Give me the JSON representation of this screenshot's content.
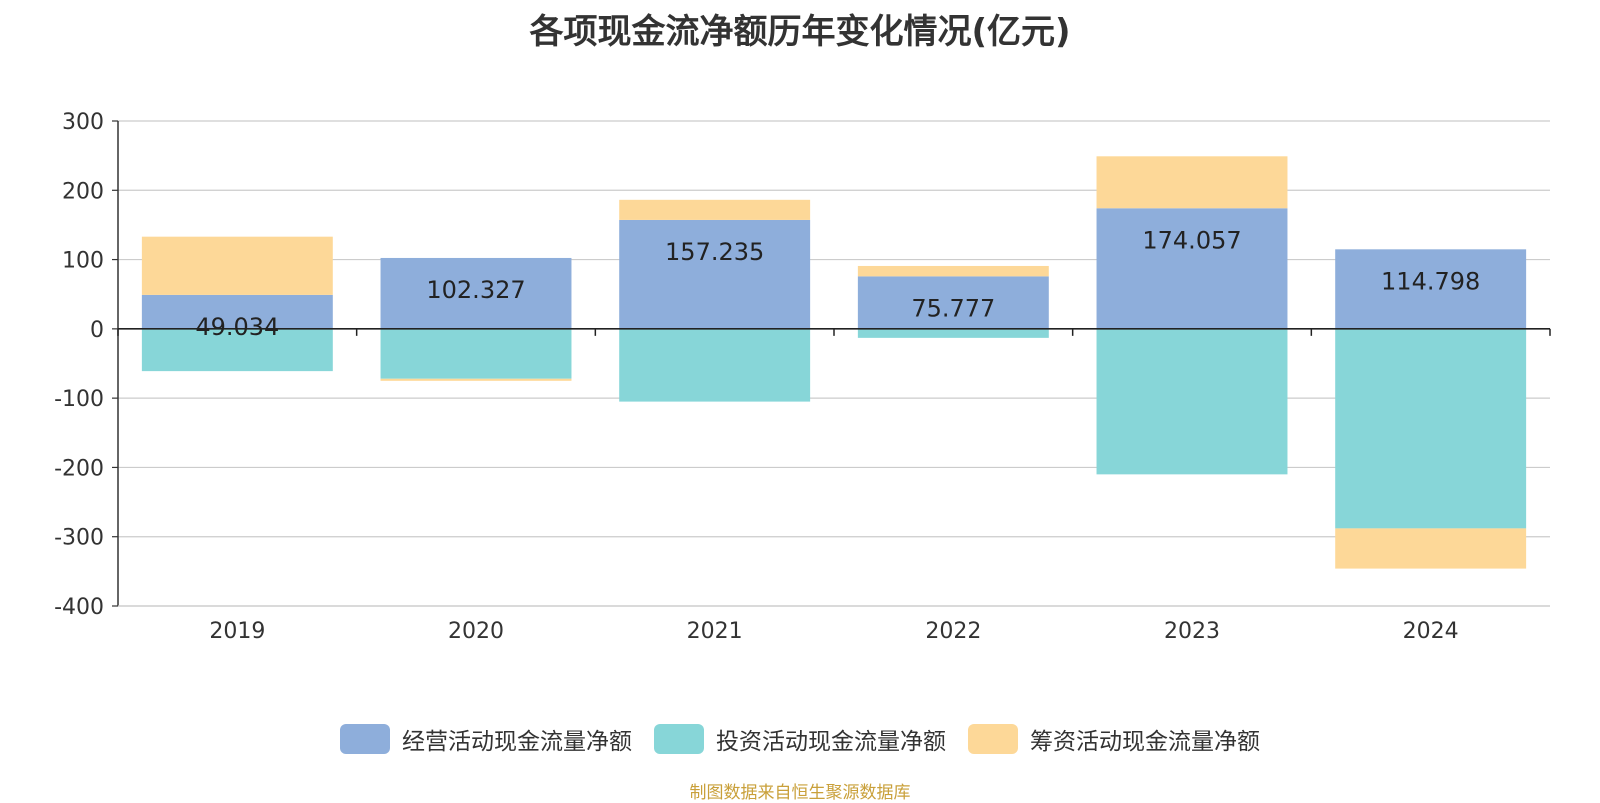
{
  "chart_data": {
    "type": "bar",
    "stacked": true,
    "title": "各项现金流净额历年变化情况(亿元)",
    "categories": [
      "2019",
      "2020",
      "2021",
      "2022",
      "2023",
      "2024"
    ],
    "series": [
      {
        "name": "经营活动现金流量净额",
        "color": "#8eaedb",
        "values": [
          49.034,
          102.327,
          157.235,
          75.777,
          174.057,
          114.798
        ]
      },
      {
        "name": "投资活动现金流量净额",
        "color": "#87d6d8",
        "values": [
          -61,
          -72,
          -105,
          -13,
          -210,
          -288
        ]
      },
      {
        "name": "筹资活动现金流量净额",
        "color": "#fdd898",
        "values": [
          84,
          -3,
          29,
          15,
          75,
          -58
        ]
      }
    ],
    "data_labels": [
      "49.034",
      "102.327",
      "157.235",
      "75.777",
      "174.057",
      "114.798"
    ],
    "y_ticks": [
      300,
      200,
      100,
      0,
      -100,
      -200,
      -300,
      -400
    ],
    "y_tick_labels": [
      "300",
      "200",
      "100",
      "0",
      "-100",
      "-200",
      "-300",
      "-400"
    ],
    "ylim": [
      -400,
      300
    ],
    "grid": true,
    "legend_position": "bottom-center",
    "source": "制图数据来自恒生聚源数据库"
  }
}
